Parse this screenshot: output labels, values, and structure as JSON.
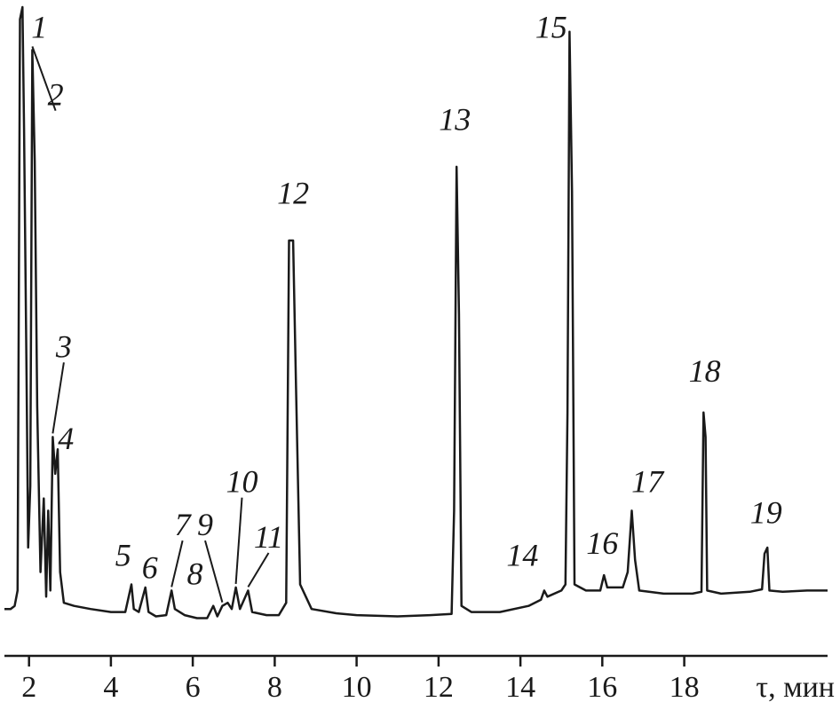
{
  "chart_data": {
    "type": "line",
    "title": "",
    "xlabel": "τ, мин",
    "ylabel": "",
    "xlim": [
      1.4,
      21.5
    ],
    "ylim": [
      0,
      1
    ],
    "grid": false,
    "x_ticks": [
      2,
      4,
      6,
      8,
      10,
      12,
      14,
      16,
      18
    ],
    "series": [
      {
        "points": [
          [
            1.4,
            0.02
          ],
          [
            1.55,
            0.02
          ],
          [
            1.65,
            0.025
          ],
          [
            1.72,
            0.05
          ],
          [
            1.78,
            0.98
          ],
          [
            1.84,
            1.0
          ],
          [
            1.88,
            0.8
          ],
          [
            1.94,
            0.4
          ],
          [
            1.98,
            0.12
          ],
          [
            2.03,
            0.22
          ],
          [
            2.08,
            0.93
          ],
          [
            2.14,
            0.75
          ],
          [
            2.2,
            0.35
          ],
          [
            2.28,
            0.08
          ],
          [
            2.36,
            0.2
          ],
          [
            2.42,
            0.04
          ],
          [
            2.47,
            0.18
          ],
          [
            2.52,
            0.05
          ],
          [
            2.58,
            0.3
          ],
          [
            2.64,
            0.24
          ],
          [
            2.7,
            0.28
          ],
          [
            2.76,
            0.08
          ],
          [
            2.85,
            0.03
          ],
          [
            3.1,
            0.025
          ],
          [
            3.5,
            0.02
          ],
          [
            4.0,
            0.015
          ],
          [
            4.35,
            0.015
          ],
          [
            4.5,
            0.06
          ],
          [
            4.56,
            0.02
          ],
          [
            4.68,
            0.015
          ],
          [
            4.84,
            0.055
          ],
          [
            4.92,
            0.015
          ],
          [
            5.1,
            0.008
          ],
          [
            5.35,
            0.01
          ],
          [
            5.48,
            0.05
          ],
          [
            5.56,
            0.02
          ],
          [
            5.8,
            0.01
          ],
          [
            6.1,
            0.005
          ],
          [
            6.35,
            0.005
          ],
          [
            6.5,
            0.025
          ],
          [
            6.6,
            0.008
          ],
          [
            6.72,
            0.025
          ],
          [
            6.85,
            0.03
          ],
          [
            6.95,
            0.02
          ],
          [
            7.05,
            0.055
          ],
          [
            7.15,
            0.02
          ],
          [
            7.35,
            0.05
          ],
          [
            7.45,
            0.015
          ],
          [
            7.8,
            0.01
          ],
          [
            8.1,
            0.01
          ],
          [
            8.28,
            0.03
          ],
          [
            8.35,
            0.62
          ],
          [
            8.45,
            0.62
          ],
          [
            8.52,
            0.38
          ],
          [
            8.62,
            0.06
          ],
          [
            8.9,
            0.02
          ],
          [
            9.5,
            0.013
          ],
          [
            10.0,
            0.01
          ],
          [
            11.0,
            0.008
          ],
          [
            11.8,
            0.01
          ],
          [
            12.32,
            0.012
          ],
          [
            12.38,
            0.18
          ],
          [
            12.44,
            0.74
          ],
          [
            12.5,
            0.5
          ],
          [
            12.56,
            0.025
          ],
          [
            12.8,
            0.015
          ],
          [
            13.5,
            0.015
          ],
          [
            14.2,
            0.025
          ],
          [
            14.5,
            0.035
          ],
          [
            14.58,
            0.05
          ],
          [
            14.66,
            0.04
          ],
          [
            15.0,
            0.05
          ],
          [
            15.1,
            0.06
          ],
          [
            15.15,
            0.34
          ],
          [
            15.2,
            0.96
          ],
          [
            15.26,
            0.7
          ],
          [
            15.32,
            0.06
          ],
          [
            15.6,
            0.05
          ],
          [
            15.95,
            0.05
          ],
          [
            16.04,
            0.075
          ],
          [
            16.12,
            0.055
          ],
          [
            16.5,
            0.055
          ],
          [
            16.62,
            0.08
          ],
          [
            16.72,
            0.18
          ],
          [
            16.8,
            0.1
          ],
          [
            16.9,
            0.05
          ],
          [
            17.5,
            0.045
          ],
          [
            18.2,
            0.045
          ],
          [
            18.42,
            0.048
          ],
          [
            18.47,
            0.34
          ],
          [
            18.52,
            0.3
          ],
          [
            18.56,
            0.05
          ],
          [
            18.9,
            0.045
          ],
          [
            19.6,
            0.048
          ],
          [
            19.9,
            0.052
          ],
          [
            19.96,
            0.11
          ],
          [
            20.03,
            0.12
          ],
          [
            20.08,
            0.05
          ],
          [
            20.4,
            0.048
          ],
          [
            21.0,
            0.05
          ],
          [
            21.5,
            0.05
          ]
        ]
      }
    ],
    "peak_labels": [
      {
        "label": "1",
        "x": 1.84,
        "y": 1.0,
        "text_x": 2.25,
        "text_y": 0.95
      },
      {
        "label": "2",
        "x": 2.08,
        "y": 0.93,
        "text_x": 2.65,
        "text_y": 0.84
      },
      {
        "label": "3",
        "x": 2.58,
        "y": 0.3,
        "text_x": 2.85,
        "text_y": 0.43
      },
      {
        "label": "4",
        "x": 2.7,
        "y": 0.28,
        "text_x": 2.9,
        "text_y": 0.28
      },
      {
        "label": "5",
        "x": 4.5,
        "y": 0.06,
        "text_x": 4.3,
        "text_y": 0.09
      },
      {
        "label": "6",
        "x": 4.84,
        "y": 0.055,
        "text_x": 4.95,
        "text_y": 0.07
      },
      {
        "label": "7",
        "x": 5.48,
        "y": 0.05,
        "text_x": 5.75,
        "text_y": 0.14
      },
      {
        "label": "8",
        "x": 6.5,
        "y": 0.025,
        "text_x": 6.05,
        "text_y": 0.06
      },
      {
        "label": "9",
        "x": 6.72,
        "y": 0.025,
        "text_x": 6.3,
        "text_y": 0.14
      },
      {
        "label": "10",
        "x": 7.05,
        "y": 0.055,
        "text_x": 7.2,
        "text_y": 0.21
      },
      {
        "label": "11",
        "x": 7.35,
        "y": 0.05,
        "text_x": 7.85,
        "text_y": 0.12
      },
      {
        "label": "12",
        "x": 8.4,
        "y": 0.62,
        "text_x": 8.45,
        "text_y": 0.68
      },
      {
        "label": "13",
        "x": 12.44,
        "y": 0.74,
        "text_x": 12.4,
        "text_y": 0.8
      },
      {
        "label": "14",
        "x": 14.58,
        "y": 0.05,
        "text_x": 14.05,
        "text_y": 0.09
      },
      {
        "label": "15",
        "x": 15.2,
        "y": 0.96,
        "text_x": 14.75,
        "text_y": 0.95
      },
      {
        "label": "16",
        "x": 16.04,
        "y": 0.075,
        "text_x": 16.0,
        "text_y": 0.11
      },
      {
        "label": "17",
        "x": 16.72,
        "y": 0.18,
        "text_x": 17.1,
        "text_y": 0.21
      },
      {
        "label": "18",
        "x": 18.47,
        "y": 0.34,
        "text_x": 18.5,
        "text_y": 0.39
      },
      {
        "label": "19",
        "x": 20.03,
        "y": 0.12,
        "text_x": 20.0,
        "text_y": 0.16
      }
    ]
  }
}
